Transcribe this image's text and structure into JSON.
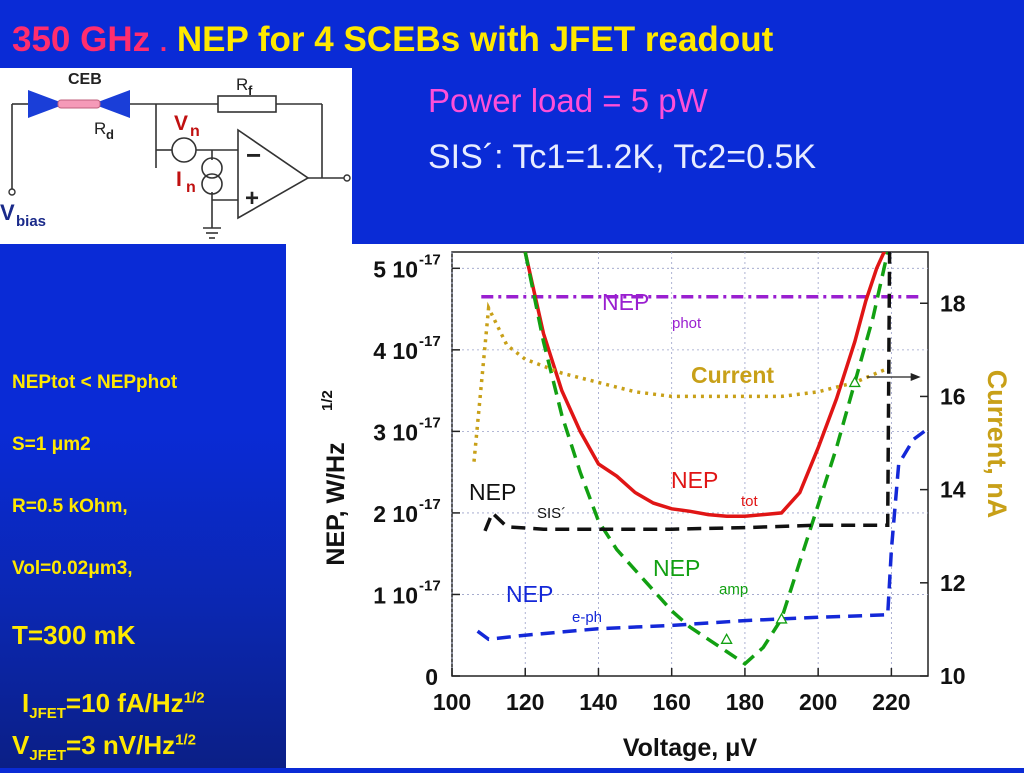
{
  "header": {
    "freq": "350 GHz",
    "dot": ".",
    "title": "NEP for 4 SCEBs with JFET readout",
    "power_load": "Power load = 5 pW",
    "sis": "SIS´: Tc1=1.2K, Tc2=0.5K"
  },
  "circuit": {
    "ceb": "CEB",
    "rf": "R",
    "rf_sub": "f",
    "rd": "R",
    "rd_sub": "d",
    "vn": "V",
    "vn_sub": "n",
    "in": "I",
    "in_sub": "n",
    "minus": "−",
    "plus": "+",
    "vbias": "V",
    "vbias_sub": "bias"
  },
  "params": {
    "p1": "NEPtot < NEPphot",
    "p2": "S=1 μm2",
    "p3": "R=0.5 kOhm,",
    "p4": "Vol=0.02μm3,",
    "p5": "T=300 mK",
    "ijfet": "I",
    "ijfet_sub": "JFET",
    "ijfet_val": "=10 fA/Hz",
    "ijfet_sup": "1/2",
    "vjfet": "V",
    "vjfet_sub": "JFET",
    "vjfet_val": "=3 nV/Hz",
    "vjfet_sup": "1/2"
  },
  "chart_data": {
    "type": "line",
    "xlabel": "Voltage, μV",
    "ylabel": "NEP, W/Hz",
    "ylabel_sup": "1/2",
    "y2label": "Current, nA",
    "xlim": [
      100,
      230
    ],
    "ylim": [
      0,
      5.2e-17
    ],
    "y2lim": [
      10,
      19.1
    ],
    "x_ticks": [
      100,
      120,
      140,
      160,
      180,
      200,
      220
    ],
    "y_ticks": [
      {
        "value": 0,
        "label": "0",
        "exp": ""
      },
      {
        "value": 1e-17,
        "label": "1 10",
        "exp": "-17"
      },
      {
        "value": 2e-17,
        "label": "2 10",
        "exp": "-17"
      },
      {
        "value": 3e-17,
        "label": "3 10",
        "exp": "-17"
      },
      {
        "value": 4e-17,
        "label": "4 10",
        "exp": "-17"
      },
      {
        "value": 5e-17,
        "label": "5 10",
        "exp": "-17"
      }
    ],
    "y2_ticks": [
      10,
      12,
      14,
      16,
      18
    ],
    "series": [
      {
        "name": "NEP",
        "sub": "phot",
        "color": "#9a1fd0",
        "dash": "dashdot",
        "axis": "left",
        "x": [
          108,
          228
        ],
        "y": [
          4.65e-17,
          4.65e-17
        ]
      },
      {
        "name": "NEP",
        "sub": "tot",
        "color": "#e01515",
        "dash": "solid",
        "axis": "left",
        "x": [
          120,
          125,
          130,
          135,
          140,
          145,
          150,
          155,
          160,
          165,
          170,
          175,
          180,
          185,
          190,
          195,
          200,
          205,
          210,
          213,
          216,
          218,
          219
        ],
        "y": [
          5.2e-17,
          4.2e-17,
          3.5e-17,
          3e-17,
          2.6e-17,
          2.45e-17,
          2.25e-17,
          2.12e-17,
          2.05e-17,
          2.02e-17,
          1.98e-17,
          1.96e-17,
          1.96e-17,
          1.98e-17,
          2e-17,
          2.25e-17,
          2.8e-17,
          3.4e-17,
          4.1e-17,
          4.6e-17,
          5e-17,
          5.2e-17,
          5.2e-17
        ]
      },
      {
        "name": "NEP",
        "sub": "amp",
        "color": "#12a012",
        "dash": "dashed",
        "axis": "left",
        "x": [
          120,
          125,
          130,
          135,
          140,
          145,
          150,
          155,
          160,
          165,
          170,
          175,
          180,
          185,
          190,
          195,
          200,
          205,
          210,
          215,
          219
        ],
        "y": [
          5.2e-17,
          4.1e-17,
          3.2e-17,
          2.5e-17,
          1.9e-17,
          1.55e-17,
          1.3e-17,
          1.05e-17,
          8e-18,
          6e-18,
          4.5e-18,
          3e-18,
          1.5e-18,
          3.5e-18,
          7e-18,
          1.4e-17,
          2.1e-17,
          2.8e-17,
          3.6e-17,
          4.4e-17,
          5.2e-17
        ]
      },
      {
        "name": "NEP",
        "sub": "SIS´",
        "color": "#111111",
        "dash": "dashed",
        "axis": "left",
        "x": [
          109,
          111,
          115,
          125,
          140,
          160,
          180,
          200,
          215,
          219,
          219.5
        ],
        "y": [
          1.78e-17,
          2e-17,
          1.83e-17,
          1.8e-17,
          1.8e-17,
          1.8e-17,
          1.82e-17,
          1.85e-17,
          1.85e-17,
          1.85e-17,
          5.2e-17
        ]
      },
      {
        "name": "NEP",
        "sub": "e-ph",
        "color": "#1428d8",
        "dash": "dashed",
        "axis": "left",
        "x": [
          107,
          110,
          120,
          140,
          160,
          180,
          200,
          219,
          220,
          222,
          226,
          229
        ],
        "y": [
          5.5e-18,
          4.5e-18,
          5e-18,
          5.8e-18,
          6.2e-18,
          6.8e-18,
          7.2e-18,
          7.5e-18,
          1.55e-17,
          2.6e-17,
          2.9e-17,
          3e-17
        ]
      },
      {
        "name": "Current",
        "sub": "",
        "color": "#c8a018",
        "dash": "dotted",
        "axis": "right",
        "x": [
          106,
          110,
          115,
          120,
          130,
          140,
          150,
          160,
          170,
          180,
          190,
          200,
          210,
          216,
          219
        ],
        "y": [
          14.6,
          17.9,
          17.1,
          16.8,
          16.5,
          16.3,
          16.1,
          16.0,
          16.0,
          16.0,
          16.0,
          16.1,
          16.3,
          16.5,
          16.6
        ]
      }
    ],
    "annotation": {
      "text": "Current",
      "arrow_from": 215,
      "arrow_to": 228
    }
  }
}
